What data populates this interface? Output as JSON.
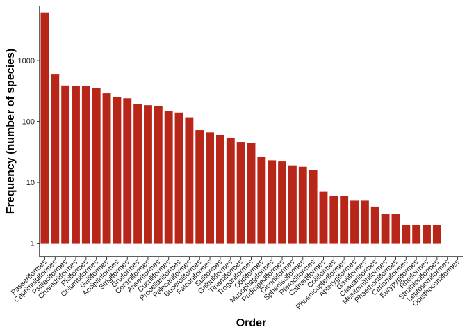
{
  "chart_data": {
    "type": "bar",
    "title": "",
    "xlabel": "Order",
    "ylabel": "Frequency (number of species)",
    "yscale": "log10",
    "ylim": [
      0.6,
      8000
    ],
    "yticks": [
      1,
      10,
      100,
      1000
    ],
    "ytick_labels": [
      "1",
      "10",
      "100",
      "1000"
    ],
    "bar_color": "#b8261a",
    "grid": false,
    "legend": "none",
    "categories": [
      "Passeriformes",
      "Caprimulgiformes",
      "Psittaciformes",
      "Charadriiformes",
      "Piciformes",
      "Columbiformes",
      "Galliformes",
      "Accipitriformes",
      "Strigiformes",
      "Gruiformes",
      "Coraciiformes",
      "Anseriformes",
      "Cuculiformes",
      "Procellariiformes",
      "Pelecaniformes",
      "Bucerotiformes",
      "Falconiformes",
      "Suliformes",
      "Galbuliformes",
      "Tinamiformes",
      "Trogoniformes",
      "Otidiformes",
      "Musophagiformes",
      "Podicipediformes",
      "Ciconiiformes",
      "Sphenisciformes",
      "Pterocliformes",
      "Cathartiformes",
      "Coliiformes",
      "Phoenicopteriformes",
      "Apterygiformes",
      "Gaviiformes",
      "Casuariiformes",
      "Mesitornithiformes",
      "Phaethontiformes",
      "Cariamiformes",
      "Eurypygiformes",
      "Rheiformes",
      "Struthioniformes",
      "Leptosomiformes",
      "Opisthocomiformes"
    ],
    "values": [
      6200,
      590,
      390,
      380,
      380,
      350,
      290,
      250,
      240,
      195,
      185,
      180,
      148,
      140,
      117,
      72,
      66,
      60,
      54,
      46,
      44,
      26,
      23,
      22,
      19,
      18,
      16,
      7,
      6,
      6,
      5,
      5,
      4,
      3,
      3,
      2,
      2,
      2,
      2,
      1,
      1
    ]
  }
}
